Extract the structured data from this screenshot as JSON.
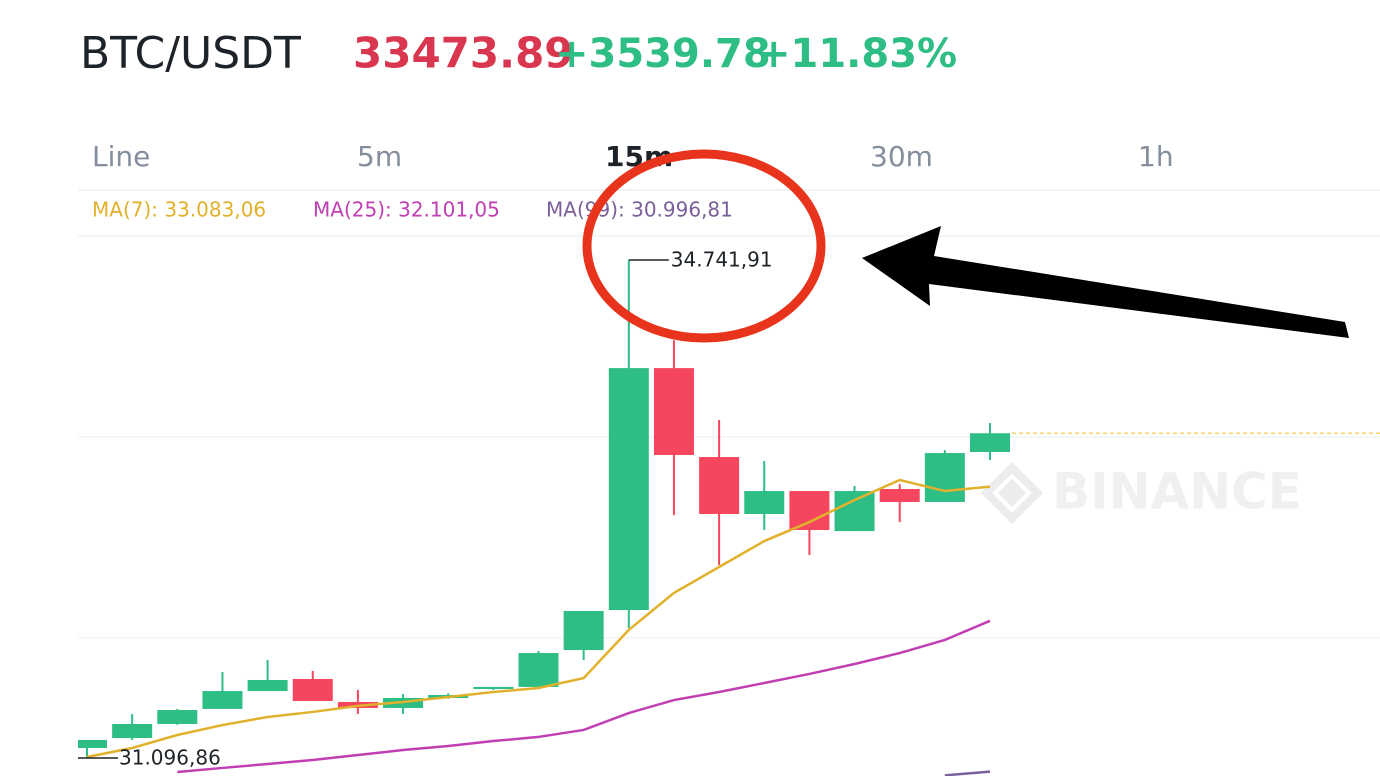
{
  "header": {
    "pair": "BTC/USDT",
    "price": "33473.89",
    "change": "+3539.78",
    "change_pct": "+11.83%"
  },
  "tabs": [
    "Line",
    "5m",
    "15m",
    "30m",
    "1h"
  ],
  "active_tab": 2,
  "watermark": "BINANCE",
  "chart_data": {
    "type": "candlestick",
    "up_color": "#2ebd85",
    "down_color": "#f6465d",
    "ylim": [
      30965,
      34918
    ],
    "open": [
      31170,
      31243,
      31346,
      31456,
      31587,
      31675,
      31507,
      31463,
      31536,
      31602,
      31617,
      31887,
      32180,
      33951,
      33300,
      32883,
      33051,
      32758,
      33066,
      32971,
      33337
    ],
    "high": [
      31229,
      31419,
      31456,
      31726,
      31814,
      31734,
      31595,
      31565,
      31570,
      31617,
      31880,
      32173,
      34741.91,
      34156,
      33571,
      33271,
      33051,
      33088,
      33102,
      33351,
      33549
    ],
    "low": [
      31096.86,
      31229,
      31340,
      31456,
      31587,
      31514,
      31419,
      31419,
      31530,
      31595,
      31610,
      31814,
      32048,
      32876,
      32510,
      32766,
      32583,
      32758,
      32824,
      32971,
      33278
    ],
    "close": [
      31229,
      31346,
      31448,
      31587,
      31668,
      31514,
      31463,
      31536,
      31558,
      31617,
      31865,
      32173,
      33951,
      33315,
      32883,
      33051,
      32766,
      33051,
      32971,
      33329,
      33473.89
    ],
    "high_label": "34.741,91",
    "low_label": "31.096,86",
    "series": [
      {
        "name": "MA(7): 33.083,06",
        "color": "#e1b12c",
        "values": [
          31104,
          31170,
          31265,
          31338,
          31397,
          31434,
          31478,
          31507,
          31543,
          31580,
          31609,
          31682,
          32034,
          32305,
          32495,
          32685,
          32824,
          32985,
          33132,
          33051,
          33083.06
        ]
      },
      {
        "name": "MA(25): 32.101,05",
        "color": "#c13fb3",
        "values": [
          null,
          null,
          30994,
          31024,
          31053,
          31082,
          31119,
          31155,
          31185,
          31221,
          31251,
          31302,
          31426,
          31521,
          31580,
          31646,
          31712,
          31785,
          31865,
          31961,
          32101.05
        ]
      },
      {
        "name": "MA(99): 30.996,81",
        "color": "#7b5f99",
        "values": [
          null,
          null,
          null,
          null,
          null,
          null,
          null,
          null,
          null,
          null,
          null,
          null,
          null,
          null,
          null,
          null,
          null,
          null,
          null,
          30970,
          30996.81
        ]
      }
    ]
  }
}
